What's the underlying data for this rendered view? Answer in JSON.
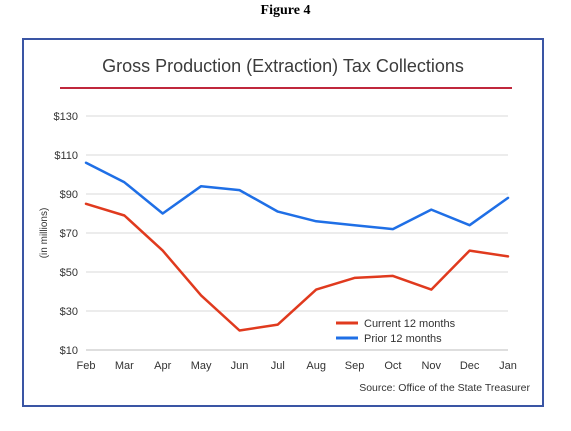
{
  "figure_label": "Figure 4",
  "chart_data": {
    "type": "line",
    "title": "Gross Production (Extraction) Tax Collections",
    "ylabel": "(in millions)",
    "xlabel": "",
    "categories": [
      "Feb",
      "Mar",
      "Apr",
      "May",
      "Jun",
      "Jul",
      "Aug",
      "Sep",
      "Oct",
      "Nov",
      "Dec",
      "Jan"
    ],
    "ylim": [
      10,
      130
    ],
    "yticks": [
      10,
      30,
      50,
      70,
      90,
      110,
      130
    ],
    "ytick_labels": [
      "$10",
      "$30",
      "$50",
      "$70",
      "$90",
      "$110",
      "$130"
    ],
    "grid": true,
    "legend_position": "bottom-right",
    "series": [
      {
        "name": "Current 12 months",
        "color": "#e03a1e",
        "values": [
          85,
          79,
          61,
          38,
          20,
          23,
          41,
          47,
          48,
          41,
          61,
          58
        ]
      },
      {
        "name": "Prior 12 months",
        "color": "#1f6fe6",
        "values": [
          106,
          96,
          80,
          94,
          92,
          81,
          76,
          74,
          72,
          82,
          74,
          88
        ]
      }
    ],
    "source": "Source: Office of the State Treasurer",
    "title_rule_color": "#c0283c"
  }
}
